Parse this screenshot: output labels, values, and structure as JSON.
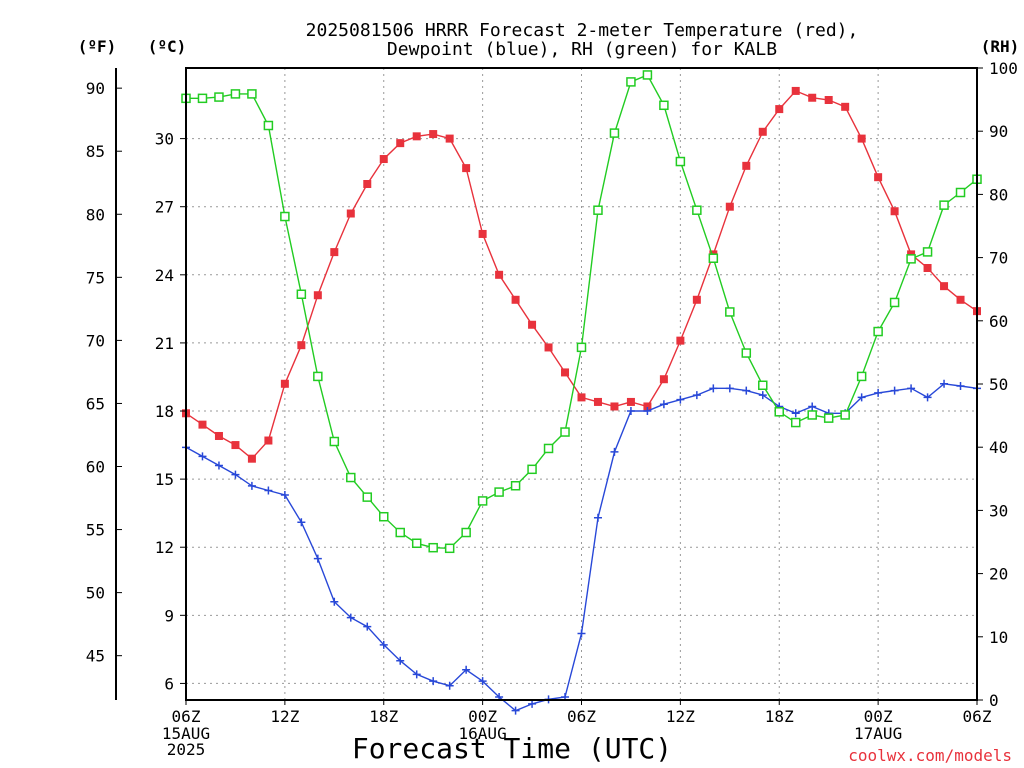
{
  "chart_data": {
    "type": "line",
    "title": [
      "2025081506 HRRR Forecast 2-meter Temperature (red),",
      "Dewpoint (blue), RH (green) for KALB"
    ],
    "xlabel": "Forecast Time (UTC)",
    "units": {
      "f": "(ºF)",
      "c": "(ºC)",
      "rh": "(RH)"
    },
    "credit": "coolwx.com/models",
    "x_ticks": [
      "06Z",
      "12Z",
      "18Z",
      "00Z",
      "06Z",
      "12Z",
      "18Z",
      "00Z",
      "06Z"
    ],
    "date_labels": [
      {
        "lines": [
          "15AUG",
          "2025"
        ],
        "at": 0
      },
      {
        "lines": [
          "16AUG"
        ],
        "at": 18
      },
      {
        "lines": [
          "17AUG"
        ],
        "at": 42
      }
    ],
    "ylim_c": [
      5.27,
      33.11
    ],
    "ylim_rh": [
      0,
      100
    ],
    "f_ticks": [
      45,
      50,
      55,
      60,
      65,
      70,
      75,
      80,
      85,
      90
    ],
    "c_ticks": [
      6,
      9,
      12,
      15,
      18,
      21,
      24,
      27,
      30
    ],
    "rh_ticks": [
      0,
      10,
      20,
      30,
      40,
      50,
      60,
      70,
      80,
      90,
      100
    ],
    "grid": true,
    "colors": {
      "temperature": "#e8323c",
      "dewpoint": "#2848d8",
      "rh": "#22cc22"
    },
    "x_hours": [
      0,
      1,
      2,
      3,
      4,
      5,
      6,
      7,
      8,
      9,
      10,
      11,
      12,
      13,
      14,
      15,
      16,
      17,
      18,
      19,
      20,
      21,
      22,
      23,
      24,
      25,
      26,
      27,
      28,
      29,
      30,
      31,
      32,
      33,
      34,
      35,
      36,
      37,
      38,
      39,
      40,
      41,
      42,
      43,
      44,
      45,
      46,
      47,
      48
    ],
    "series": [
      {
        "name": "Temperature",
        "axis": "c",
        "marker": "filled-square",
        "values": [
          17.9,
          17.4,
          16.9,
          16.5,
          15.9,
          16.7,
          19.2,
          20.9,
          23.1,
          25.0,
          26.7,
          28.0,
          29.1,
          29.8,
          30.1,
          30.2,
          30.0,
          28.7,
          25.8,
          24.0,
          22.9,
          21.8,
          20.8,
          19.7,
          18.6,
          18.4,
          18.2,
          18.4,
          18.2,
          19.4,
          21.1,
          22.9,
          24.9,
          27.0,
          28.8,
          30.3,
          31.3,
          32.1,
          31.8,
          31.7,
          31.4,
          30.0,
          28.3,
          26.8,
          24.9,
          24.3,
          23.5,
          22.9,
          22.4
        ]
      },
      {
        "name": "Dewpoint",
        "axis": "c",
        "marker": "plus",
        "values": [
          16.4,
          16.0,
          15.6,
          15.2,
          14.7,
          14.5,
          14.3,
          13.1,
          11.5,
          9.6,
          8.9,
          8.5,
          7.7,
          7.0,
          6.4,
          6.1,
          5.9,
          6.6,
          6.1,
          5.4,
          4.8,
          5.1,
          5.3,
          5.4,
          8.2,
          13.3,
          16.2,
          18.0,
          18.0,
          18.3,
          18.5,
          18.7,
          19.0,
          19.0,
          18.9,
          18.7,
          18.2,
          17.9,
          18.2,
          17.9,
          17.9,
          18.6,
          18.8,
          18.9,
          19.0,
          18.6,
          19.2,
          19.1,
          19.0
        ]
      },
      {
        "name": "RH",
        "axis": "rh",
        "marker": "open-square",
        "values": [
          95.2,
          95.2,
          95.4,
          95.9,
          95.9,
          90.9,
          76.5,
          64.2,
          51.2,
          40.9,
          35.2,
          32.1,
          29.0,
          26.5,
          24.8,
          24.1,
          24.0,
          26.5,
          31.5,
          32.9,
          33.9,
          36.5,
          39.8,
          42.4,
          55.8,
          77.5,
          89.7,
          97.8,
          98.9,
          94.1,
          85.2,
          77.5,
          69.9,
          61.4,
          54.9,
          49.8,
          45.6,
          43.9,
          45.1,
          44.6,
          45.1,
          51.2,
          58.3,
          62.9,
          69.8,
          70.9,
          78.3,
          80.3,
          82.4
        ]
      }
    ]
  }
}
